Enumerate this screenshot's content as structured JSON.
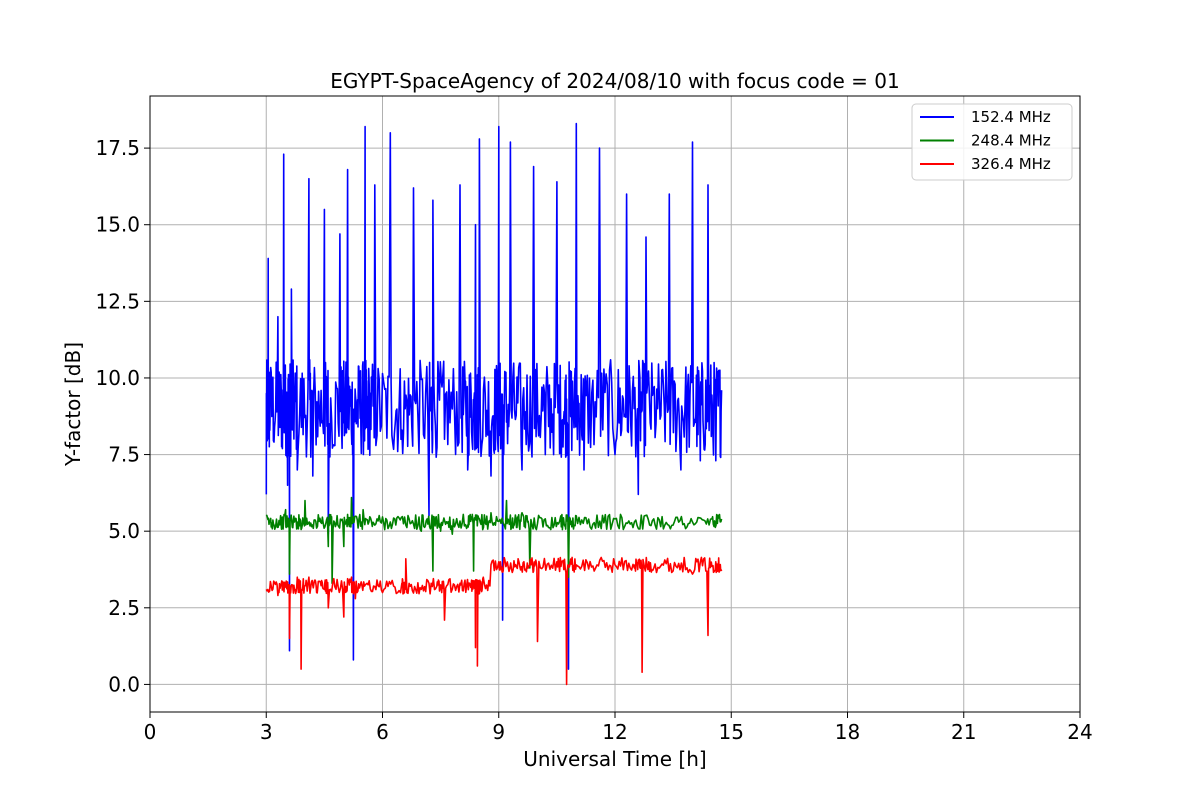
{
  "chart_data": {
    "type": "line",
    "title": "EGYPT-SpaceAgency of 2024/08/10 with focus code = 01",
    "xlabel": "Universal Time [h]",
    "ylabel": "Y-factor [dB]",
    "xlim": [
      0,
      24
    ],
    "ylim": [
      -0.9,
      19.2
    ],
    "xticks": [
      0,
      3,
      6,
      9,
      12,
      15,
      18,
      21,
      24
    ],
    "xtick_labels": [
      "0",
      "3",
      "6",
      "9",
      "12",
      "15",
      "18",
      "21",
      "24"
    ],
    "yticks": [
      0.0,
      2.5,
      5.0,
      7.5,
      10.0,
      12.5,
      15.0,
      17.5
    ],
    "ytick_labels": [
      "0.0",
      "2.5",
      "5.0",
      "7.5",
      "10.0",
      "12.5",
      "15.0",
      "17.5"
    ],
    "grid": true,
    "legend_position": "top-right",
    "series": [
      {
        "name": "152.4 MHz",
        "color": "#0000ff",
        "x": [
          3.0,
          3.05,
          3.1,
          3.3,
          3.45,
          3.55,
          3.6,
          3.65,
          3.8,
          4.1,
          4.2,
          4.5,
          4.6,
          4.9,
          5.1,
          5.25,
          5.4,
          5.55,
          5.6,
          5.8,
          6.2,
          6.5,
          6.8,
          7.2,
          7.3,
          7.6,
          8.0,
          8.2,
          8.4,
          8.5,
          8.8,
          9.0,
          9.1,
          9.3,
          9.6,
          9.9,
          10.2,
          10.5,
          10.7,
          10.8,
          11.0,
          11.2,
          11.6,
          12.0,
          12.3,
          12.6,
          12.8,
          13.1,
          13.4,
          13.7,
          14.0,
          14.2,
          14.4,
          14.6,
          14.75
        ],
        "y": [
          6.2,
          13.9,
          9.5,
          12.0,
          17.3,
          6.5,
          1.1,
          12.9,
          7.0,
          16.5,
          6.8,
          15.5,
          4.9,
          14.7,
          16.8,
          0.8,
          9.8,
          18.2,
          8.5,
          16.3,
          18.0,
          8.3,
          16.2,
          5.5,
          15.8,
          8.0,
          16.3,
          7.0,
          15.0,
          17.8,
          6.8,
          18.2,
          2.1,
          17.7,
          7.0,
          16.9,
          7.5,
          16.4,
          8.5,
          0.5,
          18.3,
          7.0,
          17.5,
          7.5,
          16.0,
          6.2,
          14.6,
          9.0,
          16.0,
          7.0,
          17.7,
          7.3,
          16.3,
          7.3,
          9.6
        ]
      },
      {
        "name": "248.4 MHz",
        "color": "#008000",
        "x": [
          3.0,
          3.2,
          3.5,
          3.6,
          3.8,
          4.0,
          4.3,
          4.6,
          4.7,
          5.0,
          5.2,
          5.5,
          5.8,
          6.2,
          6.6,
          7.0,
          7.3,
          7.5,
          7.8,
          8.2,
          8.35,
          8.5,
          8.8,
          9.2,
          9.4,
          9.6,
          9.8,
          10.2,
          10.6,
          10.8,
          11.0,
          11.5,
          12.0,
          12.5,
          13.0,
          13.5,
          14.0,
          14.5,
          14.75
        ],
        "y": [
          5.5,
          5.2,
          5.7,
          3.6,
          5.3,
          6.0,
          5.1,
          4.5,
          3.3,
          4.5,
          6.1,
          5.7,
          5.2,
          5.3,
          5.2,
          5.0,
          3.7,
          5.0,
          4.9,
          5.2,
          3.7,
          5.4,
          5.6,
          6.0,
          5.2,
          5.6,
          3.8,
          5.4,
          5.5,
          3.5,
          5.5,
          5.1,
          5.4,
          5.3,
          5.4,
          5.2,
          5.3,
          5.4,
          5.4
        ]
      },
      {
        "name": "326.4 MHz",
        "color": "#ff0000",
        "x": [
          3.0,
          3.3,
          3.5,
          3.6,
          3.8,
          3.9,
          4.1,
          4.3,
          4.5,
          4.6,
          5.0,
          5.2,
          5.3,
          5.6,
          6.0,
          6.5,
          6.6,
          7.0,
          7.4,
          7.6,
          8.0,
          8.3,
          8.4,
          8.45,
          8.6,
          9.0,
          9.2,
          9.5,
          9.8,
          10.0,
          10.5,
          10.75,
          11.0,
          11.5,
          12.0,
          12.5,
          12.7,
          13.0,
          13.5,
          14.0,
          14.4,
          14.6,
          14.75
        ],
        "y": [
          3.1,
          2.9,
          3.2,
          1.5,
          3.5,
          0.5,
          3.5,
          3.0,
          3.1,
          2.5,
          2.2,
          3.5,
          2.8,
          3.3,
          3.0,
          3.3,
          4.1,
          3.1,
          3.2,
          2.1,
          3.3,
          3.4,
          1.2,
          0.6,
          3.5,
          4.0,
          3.9,
          4.1,
          3.9,
          1.4,
          4.0,
          0.0,
          3.9,
          3.8,
          3.9,
          3.8,
          0.4,
          3.8,
          3.7,
          3.6,
          1.6,
          4.0,
          3.7
        ]
      }
    ]
  }
}
